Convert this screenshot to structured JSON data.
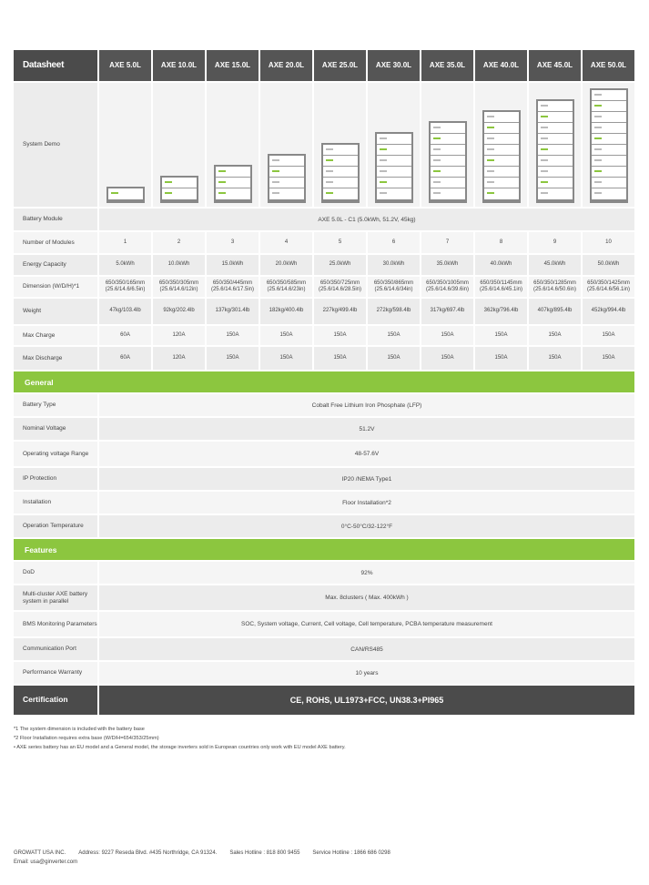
{
  "header": {
    "title": "Datasheet",
    "models": [
      "AXE 5.0L",
      "AXE 10.0L",
      "AXE 15.0L",
      "AXE 20.0L",
      "AXE 25.0L",
      "AXE 30.0L",
      "AXE 35.0L",
      "AXE 40.0L",
      "AXE 45.0L",
      "AXE 50.0L"
    ]
  },
  "system_demo": {
    "label": "System Demo",
    "modules": [
      1,
      2,
      3,
      4,
      5,
      6,
      7,
      8,
      9,
      10
    ]
  },
  "battery_module": {
    "label": "Battery Module",
    "value": "AXE 5.0L - C1 (5.0kWh, 51.2V, 45kg)"
  },
  "rows": [
    {
      "label": "Number of Modules",
      "values": [
        "1",
        "2",
        "3",
        "4",
        "5",
        "6",
        "7",
        "8",
        "9",
        "10"
      ]
    },
    {
      "label": "Energy Capacity",
      "values": [
        "5.0kWh",
        "10.0kWh",
        "15.0kWh",
        "20.0kWh",
        "25.0kWh",
        "30.0kWh",
        "35.0kWh",
        "40.0kWh",
        "45.0kWh",
        "50.0kWh"
      ]
    },
    {
      "label": "Dimension (W/D/H)*1",
      "values": [
        "650/350/165mm (25.6/14.6/6.5in)",
        "650/350/305mm (25.6/14.6/12in)",
        "650/350/445mm (25.6/14.6/17.5in)",
        "650/350/585mm (25.6/14.6/23in)",
        "650/350/725mm (25.6/14.6/28.5in)",
        "650/350/865mm (25.6/14.6/34in)",
        "650/350/1005mm (25.6/14.6/39.6in)",
        "650/350/1145mm (25.6/14.6/45.1in)",
        "650/350/1285mm (25.6/14.6/50.6in)",
        "650/350/1425mm (25.6/14.6/56.1in)"
      ]
    },
    {
      "label": "Weight",
      "values": [
        "47kg/103.4lb",
        "92kg/202.4lb",
        "137kg/301.4lb",
        "182kg/400.4lb",
        "227kg/499.4lb",
        "272kg/598.4lb",
        "317kg/697.4lb",
        "362kg/796.4lb",
        "407kg/895.4lb",
        "452kg/994.4lb"
      ]
    },
    {
      "label": "Max Charge",
      "values": [
        "60A",
        "120A",
        "150A",
        "150A",
        "150A",
        "150A",
        "150A",
        "150A",
        "150A",
        "150A"
      ]
    },
    {
      "label": "Max Discharge",
      "values": [
        "60A",
        "120A",
        "150A",
        "150A",
        "150A",
        "150A",
        "150A",
        "150A",
        "150A",
        "150A"
      ]
    }
  ],
  "general": {
    "title": "General",
    "rows": [
      {
        "label": "Battery Type",
        "value": "Cobalt Free Lithium Iron Phosphate (LFP)"
      },
      {
        "label": "Nominal Voltage",
        "value": "51.2V"
      },
      {
        "label": "Operating voltage Range",
        "value": "48-57.6V"
      },
      {
        "label": "IP Protection",
        "value": "IP20 /NEMA Type1"
      },
      {
        "label": "Installation",
        "value": "Floor Installation*2"
      },
      {
        "label": "Operation Temperature",
        "value": "0°C-50°C/32-122°F"
      }
    ]
  },
  "features": {
    "title": "Features",
    "rows": [
      {
        "label": "DoD",
        "value": "92%"
      },
      {
        "label": "Multi-cluster AXE battery system in parallel",
        "value": "Max. 8clusters ( Max. 400kWh )"
      },
      {
        "label": "BMS Monitoring Parameters",
        "value": "SOC, System voltage, Current, Cell voltage, Cell temperature, PCBA temperature measurement"
      },
      {
        "label": "Communication Port",
        "value": "CAN/RS485"
      },
      {
        "label": "Performance Warranty",
        "value": "10 years"
      }
    ]
  },
  "certification": {
    "label": "Certification",
    "value": "CE, ROHS, UL1973+FCC, UN38.3+PI965"
  },
  "notes": [
    "*1 The system dimension is included with the battery base",
    "*2 Floor Installation requires extra base (W/D/H=654/353/25mm)",
    "• AXE series battery has an EU model and a General model, the storage inverters sold in European countries only work with EU model AXE battery."
  ],
  "footer": {
    "company": "GROWATT USA INC.",
    "address": "Address: 9227 Reseda Blvd. #435 Northridge, CA 91324.",
    "sales": "Sales Hotline : 818 800 9455",
    "service": "Service Hotline : 1866 686 0298",
    "email": "Email: usa@ginverter.com"
  },
  "colors": {
    "accent": "#8cc63f",
    "header": "#4b4b4b"
  }
}
